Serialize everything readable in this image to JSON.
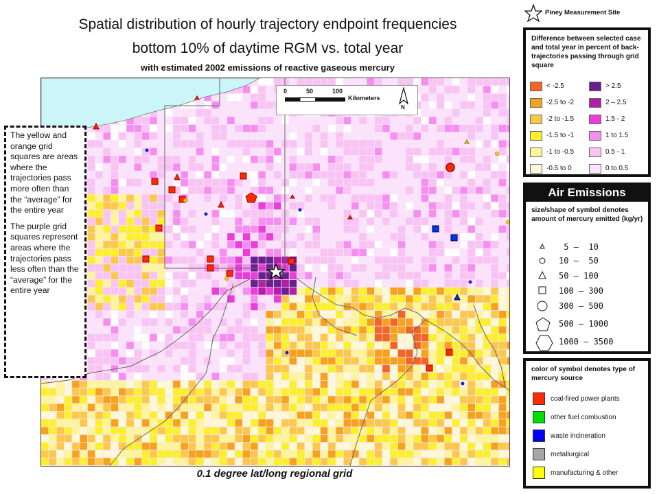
{
  "title": {
    "line1": "Spatial distribution of hourly trajectory endpoint frequencies",
    "line2": "bottom 10% of daytime RGM vs. total year",
    "subtitle": "with estimated 2002 emissions of reactive gaseous mercury"
  },
  "callout": {
    "para1": "The yellow and orange grid squares are areas where the trajectories pass more often than the “average” for the entire year",
    "para2": "The purple grid squares represent areas where the trajectories pass less often than the “average” for the entire year"
  },
  "grid_caption": "0.1 degree lat/long regional grid",
  "scale_bar": {
    "ticks": [
      "0",
      "50",
      "100"
    ],
    "unit": "Kilometers",
    "north": "N"
  },
  "measurement_site": {
    "label": "Piney Measurement Site"
  },
  "difference_legend": {
    "title": "Difference between selected case and total year in percent of back-trajectories passing through grid square",
    "left": [
      {
        "label": "< -2.5",
        "color": "#f26522"
      },
      {
        "label": "-2.5 to -2",
        "color": "#f7a21c"
      },
      {
        "label": "-2 to -1.5",
        "color": "#fbc84a"
      },
      {
        "label": "-1.5 to -1",
        "color": "#fbf02a"
      },
      {
        "label": "-1 to -0.5",
        "color": "#fdf59a"
      },
      {
        "label": "-0.5 to 0",
        "color": "#fdf9d6"
      }
    ],
    "right": [
      {
        "label": "> 2.5",
        "color": "#6a1f8e"
      },
      {
        "label": "2 – 2.5",
        "color": "#b01fa6"
      },
      {
        "label": "1.5 - 2",
        "color": "#e83fd8"
      },
      {
        "label": "1 to 1.5",
        "color": "#f58ef0"
      },
      {
        "label": "0.5 - 1",
        "color": "#f7c4f3"
      },
      {
        "label": "0 to 0.5",
        "color": "#fbe3fb"
      }
    ]
  },
  "air_emissions": {
    "header": "Air Emissions",
    "subtitle": "size/shape of symbol denotes amount of mercury emitted (kg/yr)",
    "rows": [
      {
        "label": " 5 –  10",
        "shape": "small-triangle"
      },
      {
        "label": "10 –  50",
        "shape": "small-circle"
      },
      {
        "label": "50 – 100",
        "shape": "triangle"
      },
      {
        "label": "100 – 300",
        "shape": "square"
      },
      {
        "label": "300 – 500",
        "shape": "circle"
      },
      {
        "label": "500 – 1000",
        "shape": "pentagon"
      },
      {
        "label": "1000 – 3500",
        "shape": "hexagon"
      }
    ]
  },
  "source_types": {
    "title": "color of symbol denotes type of mercury source",
    "items": [
      {
        "label": "coal-fired power plants",
        "color": "#ff2a00"
      },
      {
        "label": "other fuel combustion",
        "color": "#00e000"
      },
      {
        "label": "waste incineration",
        "color": "#0000ff"
      },
      {
        "label": "metallurgical",
        "color": "#a6a6a6"
      },
      {
        "label": "manufacturing & other",
        "color": "#ffff00"
      }
    ]
  }
}
